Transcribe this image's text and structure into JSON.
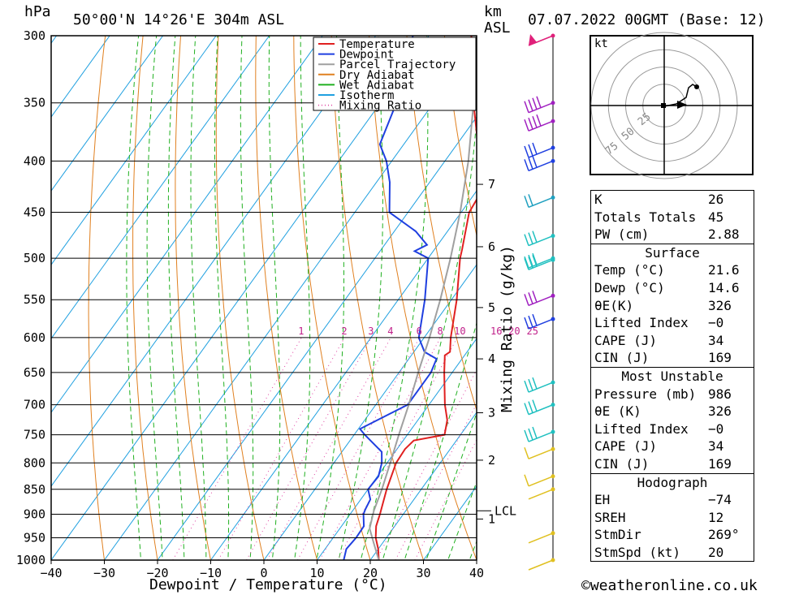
{
  "header": {
    "location": "50°00'N  14°26'E  304m  ASL",
    "datetime": "07.07.2022  00GMT  (Base: 12)",
    "hpa_label": "hPa",
    "km_label": "km",
    "asl_label": "ASL",
    "footer": "©weatheronline.co.uk"
  },
  "chart_data": {
    "type": "skew-t",
    "xlabel": "Dewpoint / Temperature (°C)",
    "ylabel_right": "Mixing Ratio (g/kg)",
    "x_ticks": [
      -40,
      -30,
      -20,
      -10,
      0,
      10,
      20,
      30,
      40
    ],
    "x_tick_labels": [
      "−40",
      "−30",
      "−20",
      "−10",
      "0",
      "10",
      "20",
      "30",
      "40"
    ],
    "pressure_levels": [
      300,
      350,
      400,
      450,
      500,
      550,
      600,
      650,
      700,
      750,
      800,
      850,
      900,
      950,
      1000
    ],
    "xlim": [
      -40,
      40
    ],
    "ylim_hpa": [
      1000,
      300
    ],
    "km_levels": [
      {
        "label": "7",
        "p": 422
      },
      {
        "label": "6",
        "p": 487
      },
      {
        "label": "5",
        "p": 560
      },
      {
        "label": "4",
        "p": 630
      },
      {
        "label": "3",
        "p": 713
      },
      {
        "label": "2",
        "p": 795
      },
      {
        "label": "1",
        "p": 910
      }
    ],
    "lcl": {
      "label": "LCL",
      "p": 893
    },
    "mixing_ratio_labels": [
      "1",
      "2",
      "3",
      "4",
      "6",
      "8",
      "10",
      "16",
      "20",
      "25"
    ],
    "legend": [
      {
        "name": "Temperature",
        "color": "#e02020",
        "style": "solid"
      },
      {
        "name": "Dewpoint",
        "color": "#1f3fe0",
        "style": "solid"
      },
      {
        "name": "Parcel Trajectory",
        "color": "#a0a0a0",
        "style": "solid"
      },
      {
        "name": "Dry Adiabat",
        "color": "#e08020",
        "style": "solid"
      },
      {
        "name": "Wet Adiabat",
        "color": "#20b020",
        "style": "solid"
      },
      {
        "name": "Isotherm",
        "color": "#20a0e0",
        "style": "solid"
      },
      {
        "name": "Mixing Ratio",
        "color": "#e040a0",
        "style": "dotted"
      }
    ],
    "series": [
      {
        "name": "Temperature",
        "points": [
          [
            1000,
            21.6
          ],
          [
            975,
            20.0
          ],
          [
            950,
            18.0
          ],
          [
            925,
            16.5
          ],
          [
            900,
            15.6
          ],
          [
            850,
            13.5
          ],
          [
            800,
            11.7
          ],
          [
            775,
            11.5
          ],
          [
            760,
            12.0
          ],
          [
            750,
            17.0
          ],
          [
            725,
            15.5
          ],
          [
            700,
            13.0
          ],
          [
            650,
            8.5
          ],
          [
            625,
            6.3
          ],
          [
            620,
            6.8
          ],
          [
            600,
            5.0
          ],
          [
            550,
            1.0
          ],
          [
            500,
            -4.0
          ],
          [
            490,
            -4.8
          ],
          [
            450,
            -8.5
          ],
          [
            430,
            -9.0
          ],
          [
            400,
            -13.5
          ],
          [
            350,
            -22.5
          ],
          [
            300,
            -32.0
          ]
        ]
      },
      {
        "name": "Dewpoint",
        "points": [
          [
            1000,
            15.0
          ],
          [
            975,
            14.0
          ],
          [
            950,
            14.3
          ],
          [
            925,
            14.2
          ],
          [
            900,
            12.5
          ],
          [
            890,
            12.2
          ],
          [
            870,
            11.8
          ],
          [
            850,
            10.0
          ],
          [
            825,
            10.2
          ],
          [
            800,
            9.0
          ],
          [
            780,
            7.5
          ],
          [
            750,
            2.0
          ],
          [
            740,
            0.3
          ],
          [
            700,
            6.0
          ],
          [
            650,
            6.0
          ],
          [
            630,
            5.2
          ],
          [
            620,
            2.0
          ],
          [
            600,
            -1.0
          ],
          [
            550,
            -5.0
          ],
          [
            500,
            -10.0
          ],
          [
            492,
            -13.5
          ],
          [
            485,
            -12.0
          ],
          [
            470,
            -16.0
          ],
          [
            450,
            -23.5
          ],
          [
            420,
            -27.5
          ],
          [
            400,
            -31.0
          ],
          [
            385,
            -34.5
          ],
          [
            350,
            -37.0
          ],
          [
            300,
            -43.0
          ]
        ]
      },
      {
        "name": "Parcel Trajectory",
        "points": [
          [
            1000,
            21.6
          ],
          [
            960,
            18.2
          ],
          [
            930,
            15.6
          ],
          [
            893,
            14.0
          ],
          [
            850,
            12.6
          ],
          [
            800,
            10.6
          ],
          [
            750,
            8.4
          ],
          [
            700,
            6.2
          ],
          [
            650,
            3.6
          ],
          [
            600,
            1.0
          ],
          [
            550,
            -2.1
          ],
          [
            500,
            -5.8
          ],
          [
            450,
            -10.2
          ],
          [
            400,
            -15.6
          ],
          [
            350,
            -22.5
          ],
          [
            300,
            -31.0
          ]
        ]
      }
    ],
    "wind_barbs": [
      {
        "p": 300,
        "color": "#e0207a",
        "flags": "pennant"
      },
      {
        "p": 350,
        "color": "#a020c0",
        "flags": "4"
      },
      {
        "p": 365,
        "color": "#a020c0",
        "flags": "4"
      },
      {
        "p": 388,
        "color": "#2040e0",
        "flags": "3"
      },
      {
        "p": 400,
        "color": "#2040e0",
        "flags": "3"
      },
      {
        "p": 435,
        "color": "#20a0c0",
        "flags": "2"
      },
      {
        "p": 475,
        "color": "#20c0c0",
        "flags": "3"
      },
      {
        "p": 500,
        "color": "#20c0c0",
        "flags": "3"
      },
      {
        "p": 502,
        "color": "#20c0c0",
        "flags": "3"
      },
      {
        "p": 545,
        "color": "#a020c0",
        "flags": "3"
      },
      {
        "p": 575,
        "color": "#2040e0",
        "flags": "3"
      },
      {
        "p": 665,
        "color": "#20c0c0",
        "flags": "3"
      },
      {
        "p": 700,
        "color": "#20c0c0",
        "flags": "3"
      },
      {
        "p": 745,
        "color": "#20c0c0",
        "flags": "3"
      },
      {
        "p": 775,
        "color": "#e0c020",
        "flags": "1"
      },
      {
        "p": 825,
        "color": "#e0c020",
        "flags": "1"
      },
      {
        "p": 850,
        "color": "#e0c020",
        "flags": "0"
      },
      {
        "p": 940,
        "color": "#e0c020",
        "flags": "0"
      },
      {
        "p": 1000,
        "color": "#e0c020",
        "flags": "0"
      }
    ],
    "hodograph": {
      "unit_label": "kt",
      "ring_labels": [
        "25",
        "50",
        "75"
      ],
      "trace_color": "#000000"
    }
  },
  "table": {
    "rows1": [
      {
        "label": "K",
        "value": "26"
      },
      {
        "label": "Totals Totals",
        "value": "45"
      },
      {
        "label": "PW (cm)",
        "value": "2.88"
      }
    ],
    "surface_title": "Surface",
    "surface": [
      {
        "label": "Temp (°C)",
        "value": "21.6"
      },
      {
        "label": "Dewp (°C)",
        "value": "14.6"
      },
      {
        "label": "θE(K)",
        "value": "326"
      },
      {
        "label": "Lifted Index",
        "value": "−0"
      },
      {
        "label": "CAPE (J)",
        "value": "34"
      },
      {
        "label": "CIN (J)",
        "value": "169"
      }
    ],
    "mu_title": "Most Unstable",
    "mu": [
      {
        "label": "Pressure (mb)",
        "value": "986"
      },
      {
        "label": "θE (K)",
        "value": "326"
      },
      {
        "label": "Lifted Index",
        "value": "−0"
      },
      {
        "label": "CAPE (J)",
        "value": "34"
      },
      {
        "label": "CIN (J)",
        "value": "169"
      }
    ],
    "hodo_title": "Hodograph",
    "hodo": [
      {
        "label": "EH",
        "value": "−74"
      },
      {
        "label": "SREH",
        "value": "12"
      },
      {
        "label": "StmDir",
        "value": "269°"
      },
      {
        "label": "StmSpd (kt)",
        "value": "20"
      }
    ]
  }
}
